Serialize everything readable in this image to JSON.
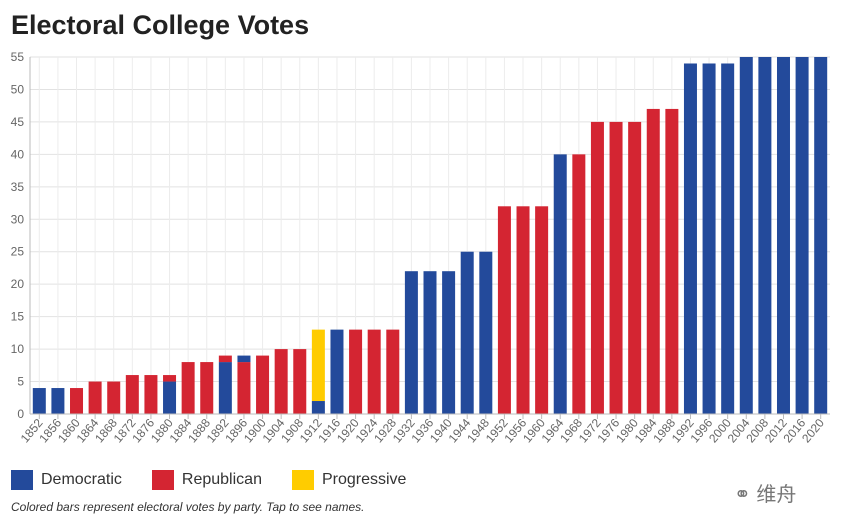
{
  "title": "Electoral College Votes",
  "note": "Colored bars represent electoral votes by party. Tap to see names.",
  "watermark": "维舟",
  "chart_data": {
    "type": "bar",
    "stacked": true,
    "title": "Electoral College Votes",
    "ylim": [
      0,
      55
    ],
    "yticks": [
      0,
      5,
      10,
      15,
      20,
      25,
      30,
      35,
      40,
      45,
      50,
      55
    ],
    "grid": true,
    "legend": "bottom-left",
    "colors": {
      "Democratic": "#234a9b",
      "Republican": "#d42532",
      "Progressive": "#ffcc00"
    },
    "legend_entries": [
      "Democratic",
      "Republican",
      "Progressive"
    ],
    "categories": [
      "1852",
      "1856",
      "1860",
      "1864",
      "1868",
      "1872",
      "1876",
      "1880",
      "1884",
      "1888",
      "1892",
      "1896",
      "1900",
      "1904",
      "1908",
      "1912",
      "1916",
      "1920",
      "1924",
      "1928",
      "1932",
      "1936",
      "1940",
      "1944",
      "1948",
      "1952",
      "1956",
      "1960",
      "1964",
      "1968",
      "1972",
      "1976",
      "1980",
      "1984",
      "1988",
      "1992",
      "1996",
      "2000",
      "2004",
      "2008",
      "2012",
      "2016",
      "2020"
    ],
    "bars": [
      [
        [
          "Democratic",
          4
        ]
      ],
      [
        [
          "Democratic",
          4
        ]
      ],
      [
        [
          "Republican",
          4
        ]
      ],
      [
        [
          "Republican",
          5
        ]
      ],
      [
        [
          "Republican",
          5
        ]
      ],
      [
        [
          "Republican",
          6
        ]
      ],
      [
        [
          "Republican",
          6
        ]
      ],
      [
        [
          "Democratic",
          5
        ],
        [
          "Republican",
          1
        ]
      ],
      [
        [
          "Republican",
          8
        ]
      ],
      [
        [
          "Republican",
          8
        ]
      ],
      [
        [
          "Democratic",
          8
        ],
        [
          "Republican",
          1
        ]
      ],
      [
        [
          "Republican",
          8
        ],
        [
          "Democratic",
          1
        ]
      ],
      [
        [
          "Republican",
          9
        ]
      ],
      [
        [
          "Republican",
          10
        ]
      ],
      [
        [
          "Republican",
          10
        ]
      ],
      [
        [
          "Democratic",
          2
        ],
        [
          "Progressive",
          11
        ]
      ],
      [
        [
          "Democratic",
          13
        ]
      ],
      [
        [
          "Republican",
          13
        ]
      ],
      [
        [
          "Republican",
          13
        ]
      ],
      [
        [
          "Republican",
          13
        ]
      ],
      [
        [
          "Democratic",
          22
        ]
      ],
      [
        [
          "Democratic",
          22
        ]
      ],
      [
        [
          "Democratic",
          22
        ]
      ],
      [
        [
          "Democratic",
          25
        ]
      ],
      [
        [
          "Democratic",
          25
        ]
      ],
      [
        [
          "Republican",
          32
        ]
      ],
      [
        [
          "Republican",
          32
        ]
      ],
      [
        [
          "Republican",
          32
        ]
      ],
      [
        [
          "Democratic",
          40
        ]
      ],
      [
        [
          "Republican",
          40
        ]
      ],
      [
        [
          "Republican",
          45
        ]
      ],
      [
        [
          "Republican",
          45
        ]
      ],
      [
        [
          "Republican",
          45
        ]
      ],
      [
        [
          "Republican",
          47
        ]
      ],
      [
        [
          "Republican",
          47
        ]
      ],
      [
        [
          "Democratic",
          54
        ]
      ],
      [
        [
          "Democratic",
          54
        ]
      ],
      [
        [
          "Democratic",
          54
        ]
      ],
      [
        [
          "Democratic",
          55
        ]
      ],
      [
        [
          "Democratic",
          55
        ]
      ],
      [
        [
          "Democratic",
          55
        ]
      ],
      [
        [
          "Democratic",
          55
        ]
      ],
      [
        [
          "Democratic",
          55
        ]
      ]
    ]
  }
}
